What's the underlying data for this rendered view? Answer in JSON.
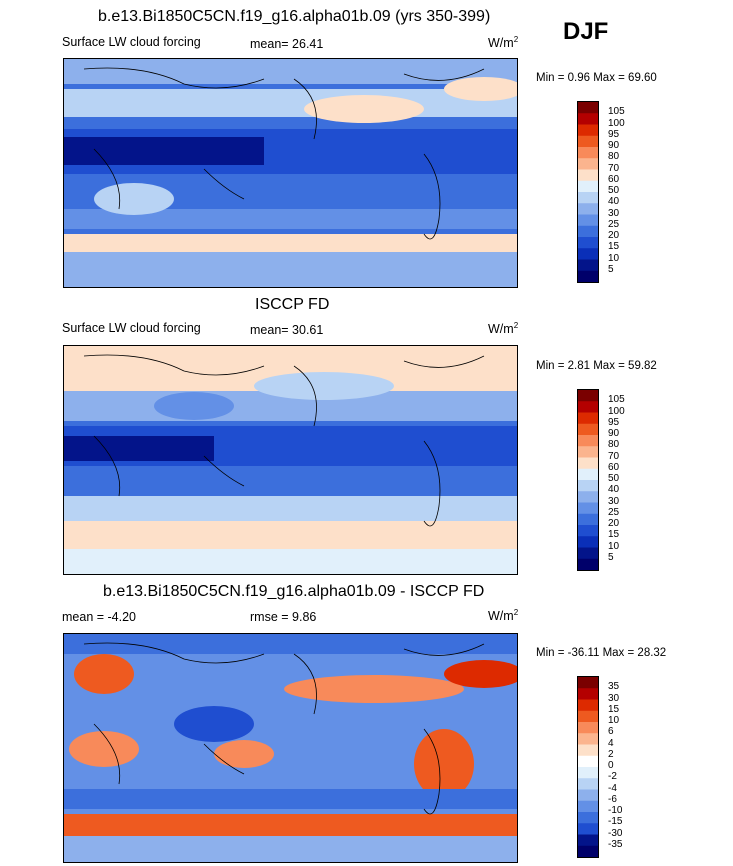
{
  "season": "DJF",
  "panels": [
    {
      "title": "b.e13.Bi1850C5CN.f19_g16.alpha01b.09 (yrs 350-399)",
      "left_label": "Surface LW cloud forcing",
      "center_label": "mean=  26.41",
      "units_base": "W/m",
      "units_exp": "2",
      "minmax": "Min =   0.96 Max =  69.60",
      "colorbar_levels": [
        "105",
        "100",
        "95",
        "90",
        "80",
        "70",
        "60",
        "50",
        "40",
        "30",
        "25",
        "20",
        "15",
        "10",
        "5"
      ]
    },
    {
      "title": "ISCCP FD",
      "left_label": "Surface LW cloud forcing",
      "center_label": "mean=  30.61",
      "units_base": "W/m",
      "units_exp": "2",
      "minmax": "Min =   2.81 Max =  59.82",
      "colorbar_levels": [
        "105",
        "100",
        "95",
        "90",
        "80",
        "70",
        "60",
        "50",
        "40",
        "30",
        "25",
        "20",
        "15",
        "10",
        "5"
      ]
    },
    {
      "title": "b.e13.Bi1850C5CN.f19_g16.alpha01b.09 - ISCCP FD",
      "left_label": "mean =  -4.20",
      "center_label": "rmse =   9.86",
      "units_base": "W/m",
      "units_exp": "2",
      "minmax": "Min = -36.11 Max =  28.32",
      "colorbar_levels": [
        "35",
        "30",
        "15",
        "10",
        "6",
        "4",
        "2",
        "0",
        "-2",
        "-4",
        "-6",
        "-10",
        "-15",
        "-30",
        "-35"
      ]
    }
  ],
  "colors": {
    "abs_scale": [
      "#7a0000",
      "#b40000",
      "#dd2a00",
      "#ee5a20",
      "#f88a5a",
      "#fbb48e",
      "#fde0c9",
      "#e1f0fb",
      "#b8d3f4",
      "#8db0ec",
      "#6390e6",
      "#3c6fdc",
      "#1f4ed0",
      "#0a2fb8",
      "#03148a",
      "#00006a"
    ],
    "diff_scale": [
      "#7a0000",
      "#b40000",
      "#dd2a00",
      "#ee5a20",
      "#f88a5a",
      "#fbb48e",
      "#fde0c9",
      "#ffffff",
      "#e1f0fb",
      "#b8d3f4",
      "#8db0ec",
      "#6390e6",
      "#3c6fdc",
      "#1f4ed0",
      "#03148a",
      "#00006a"
    ]
  },
  "chart_data": [
    {
      "type": "heatmap",
      "title": "b.e13.Bi1850C5CN.f19_g16.alpha01b.09 (yrs 350-399)",
      "variable": "Surface LW cloud forcing",
      "units": "W/m2",
      "mean": 26.41,
      "min": 0.96,
      "max": 69.6,
      "contour_levels": [
        5,
        10,
        15,
        20,
        25,
        30,
        40,
        50,
        60,
        70,
        80,
        90,
        95,
        100,
        105
      ]
    },
    {
      "type": "heatmap",
      "title": "ISCCP FD",
      "variable": "Surface LW cloud forcing",
      "units": "W/m2",
      "mean": 30.61,
      "min": 2.81,
      "max": 59.82,
      "contour_levels": [
        5,
        10,
        15,
        20,
        25,
        30,
        40,
        50,
        60,
        70,
        80,
        90,
        95,
        100,
        105
      ]
    },
    {
      "type": "heatmap",
      "title": "b.e13.Bi1850C5CN.f19_g16.alpha01b.09 - ISCCP FD",
      "units": "W/m2",
      "mean": -4.2,
      "rmse": 9.86,
      "min": -36.11,
      "max": 28.32,
      "contour_levels": [
        -35,
        -30,
        -15,
        -10,
        -6,
        -4,
        -2,
        0,
        2,
        4,
        6,
        10,
        15,
        30,
        35
      ]
    }
  ]
}
